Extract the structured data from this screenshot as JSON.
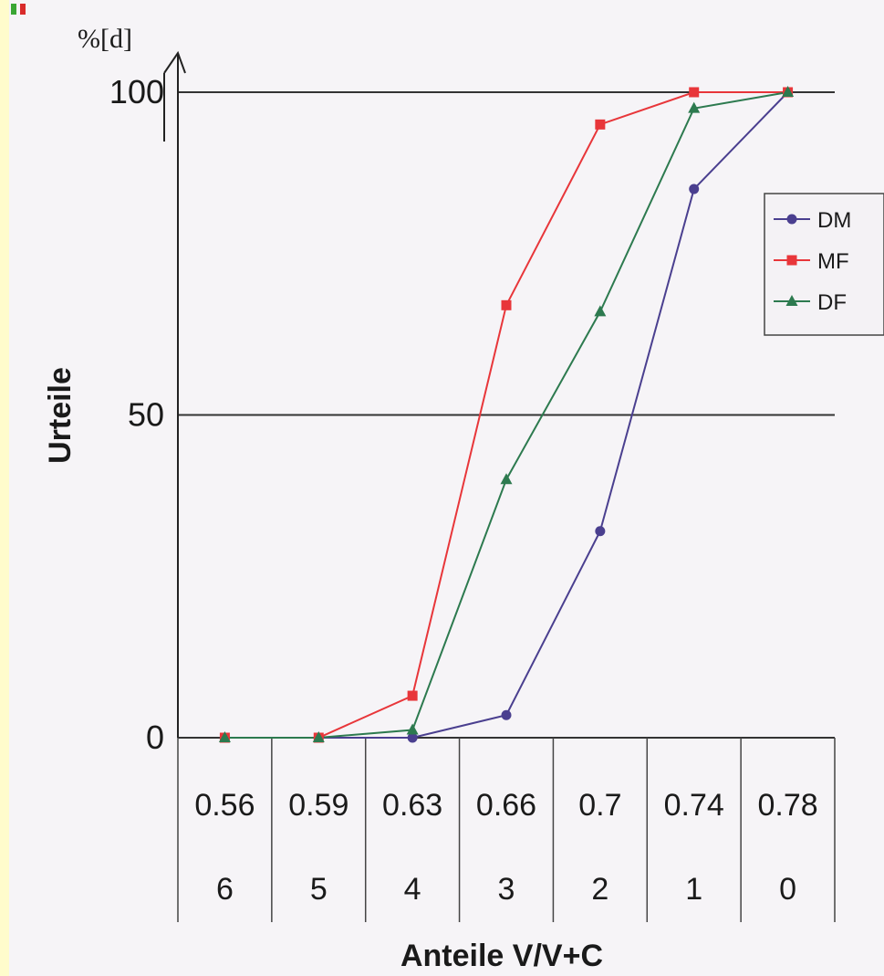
{
  "chart_data": {
    "type": "line",
    "ylabel": "Urteile",
    "yunit": "%[d]",
    "xlabel": "Anteile V/V+C",
    "ylim": [
      0,
      100
    ],
    "yticks": [
      0,
      50,
      100
    ],
    "categories": [
      "0.56",
      "0.59",
      "0.63",
      "0.66",
      "0.7",
      "0.74",
      "0.78"
    ],
    "categories_secondary": [
      "6",
      "5",
      "4",
      "3",
      "2",
      "1",
      "0"
    ],
    "legend_position": "right",
    "series": [
      {
        "name": "DM",
        "color": "#4a3f8f",
        "marker": "circle",
        "values": [
          0,
          0,
          0,
          3.5,
          32,
          85,
          100
        ]
      },
      {
        "name": "MF",
        "color": "#e8363a",
        "marker": "square",
        "values": [
          0,
          0,
          6.5,
          67,
          95,
          100,
          100
        ]
      },
      {
        "name": "DF",
        "color": "#2d7a4f",
        "marker": "triangle",
        "values": [
          0,
          0,
          1.2,
          40,
          66,
          97.5,
          100
        ]
      }
    ]
  }
}
